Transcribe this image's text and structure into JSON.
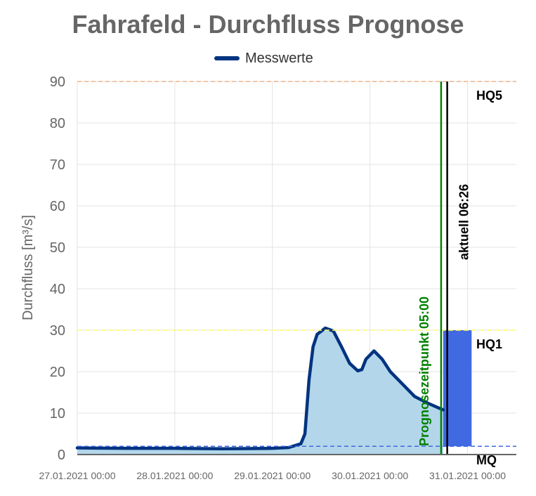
{
  "chart_data": {
    "type": "area",
    "title": "Fahrafeld - Durchfluss Prognose",
    "ylabel": "Durchfluss [m³/s]",
    "xlabel": "",
    "ylim": [
      0,
      90
    ],
    "yticks": [
      0,
      10,
      20,
      30,
      40,
      50,
      60,
      70,
      80,
      90
    ],
    "x_ticks": [
      "27.01.2021 00:00",
      "28.01.2021 00:00",
      "29.01.2021 00:00",
      "30.01.2021 00:00",
      "31.01.2021 00:00"
    ],
    "xlim": [
      "27.01.2021 00:00",
      "31.01.2021 12:00"
    ],
    "grid": true,
    "legend_position": "top-center",
    "series": [
      {
        "name": "Messwerte",
        "color": "#003380",
        "fill": "#b3d6ea",
        "points": [
          [
            "27.01.2021 00:00",
            1.6
          ],
          [
            "27.01.2021 12:00",
            1.5
          ],
          [
            "28.01.2021 00:00",
            1.5
          ],
          [
            "28.01.2021 12:00",
            1.4
          ],
          [
            "29.01.2021 00:00",
            1.5
          ],
          [
            "29.01.2021 04:00",
            1.7
          ],
          [
            "29.01.2021 07:00",
            2.6
          ],
          [
            "29.01.2021 08:00",
            5
          ],
          [
            "29.01.2021 09:00",
            18
          ],
          [
            "29.01.2021 10:00",
            26
          ],
          [
            "29.01.2021 11:00",
            29
          ],
          [
            "29.01.2021 13:00",
            30.5
          ],
          [
            "29.01.2021 15:00",
            29.8
          ],
          [
            "29.01.2021 17:00",
            26
          ],
          [
            "29.01.2021 19:00",
            22
          ],
          [
            "29.01.2021 21:00",
            20.2
          ],
          [
            "29.01.2021 22:00",
            20.5
          ],
          [
            "29.01.2021 23:00",
            23
          ],
          [
            "30.01.2021 01:00",
            25
          ],
          [
            "30.01.2021 03:00",
            23
          ],
          [
            "30.01.2021 05:00",
            20
          ],
          [
            "30.01.2021 08:00",
            17
          ],
          [
            "30.01.2021 11:00",
            14
          ],
          [
            "30.01.2021 14:00",
            12.5
          ],
          [
            "30.01.2021 17:00",
            11.2
          ],
          [
            "30.01.2021 18:00",
            10.8
          ]
        ]
      }
    ],
    "forecast_band": {
      "color": "#4169e1",
      "from": "30.01.2021 18:00",
      "to": "31.01.2021 01:00",
      "low": 2,
      "high": 30
    },
    "thresholds": [
      {
        "label": "HQ5",
        "value": 90,
        "color": "#f4b183"
      },
      {
        "label": "HQ1",
        "value": 30,
        "color": "#ffff66"
      },
      {
        "label": "MQ",
        "value": 2,
        "color": "#4169e1"
      }
    ],
    "vertical_lines": [
      {
        "label": "Prognosezeitpunkt 05:00",
        "at": "30.01.2021 17:30",
        "color": "#008000"
      },
      {
        "label": "aktuell 06:26",
        "at": "30.01.2021 19:00",
        "color": "#000000"
      }
    ]
  }
}
